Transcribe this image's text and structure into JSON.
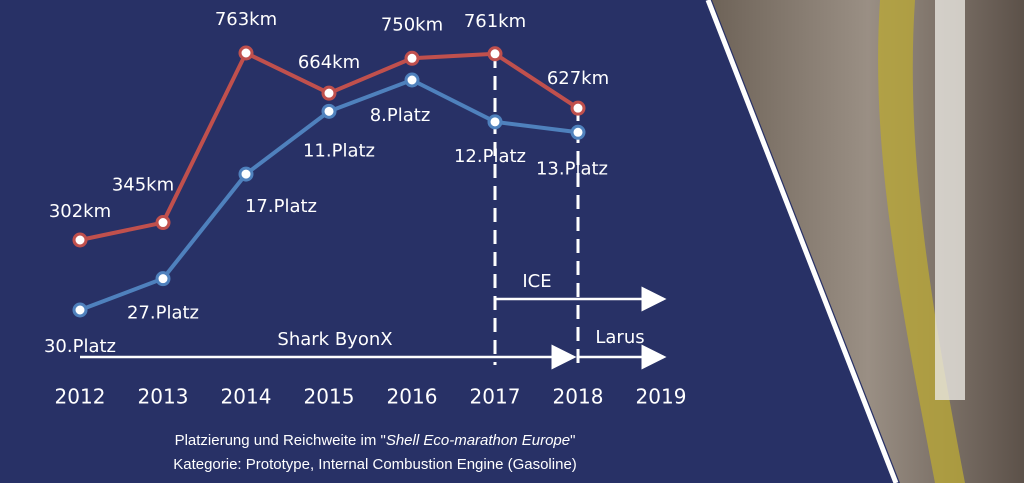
{
  "chart_data": {
    "type": "line",
    "categories": [
      "2012",
      "2013",
      "2014",
      "2015",
      "2016",
      "2017",
      "2018",
      "2019"
    ],
    "series": [
      {
        "name": "Reichweite",
        "color": "#c0504d",
        "values": [
          302,
          345,
          763,
          664,
          750,
          761,
          627,
          null
        ],
        "value_labels": [
          "302km",
          "345km",
          "763km",
          "664km",
          "750km",
          "761km",
          "627km",
          null
        ]
      },
      {
        "name": "Platzierung",
        "color": "#4f81bd",
        "values": [
          30,
          27,
          17,
          11,
          8,
          12,
          13,
          null
        ],
        "value_labels": [
          "30.Platz",
          "27.Platz",
          "17.Platz",
          "11.Platz",
          "8.Platz",
          "12.Platz",
          "13.Platz",
          null
        ]
      }
    ],
    "annotations": [
      "ICE",
      "Shark ByonX",
      "Larus"
    ],
    "caption": {
      "line1_prefix": "Platzierung und Reichweite im \"",
      "line1_italic": "Shell Eco-marathon Europe",
      "line1_suffix": "\"",
      "line2": "Kategorie: Prototype, Internal Combustion Engine (Gasoline)"
    }
  }
}
